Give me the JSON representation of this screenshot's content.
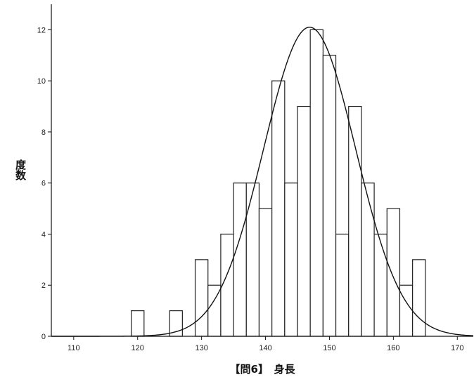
{
  "chart_data": {
    "type": "bar",
    "title": "",
    "xlabel": "【問6】　身長",
    "ylabel": "度数",
    "xlim": [
      106.5,
      172.5
    ],
    "ylim": [
      0,
      13
    ],
    "x_ticks": [
      110,
      120,
      130,
      140,
      150,
      160,
      170
    ],
    "y_ticks": [
      0,
      2,
      4,
      6,
      8,
      10,
      12
    ],
    "bin_width": 2,
    "bins": [
      {
        "start": 119,
        "value": 1
      },
      {
        "start": 125,
        "value": 1
      },
      {
        "start": 129,
        "value": 3
      },
      {
        "start": 131,
        "value": 2
      },
      {
        "start": 133,
        "value": 4
      },
      {
        "start": 135,
        "value": 6
      },
      {
        "start": 137,
        "value": 6
      },
      {
        "start": 139,
        "value": 5
      },
      {
        "start": 141,
        "value": 10
      },
      {
        "start": 143,
        "value": 6
      },
      {
        "start": 145,
        "value": 9
      },
      {
        "start": 147,
        "value": 12
      },
      {
        "start": 149,
        "value": 11
      },
      {
        "start": 151,
        "value": 4
      },
      {
        "start": 153,
        "value": 9
      },
      {
        "start": 155,
        "value": 6
      },
      {
        "start": 157,
        "value": 4
      },
      {
        "start": 159,
        "value": 5
      },
      {
        "start": 161,
        "value": 2
      },
      {
        "start": 163,
        "value": 3
      }
    ],
    "normal_curve": {
      "mean": 146.9,
      "sd": 7.2,
      "peak": 12.1
    },
    "grid": false,
    "legend": "none"
  }
}
